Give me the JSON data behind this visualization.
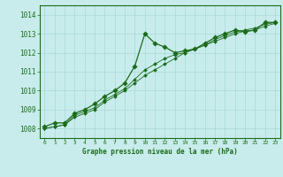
{
  "title": "Graphe pression niveau de la mer (hPa)",
  "background_color": "#c8ecec",
  "grid_color": "#a8d8d8",
  "line_color": "#1a6b1a",
  "text_color": "#1a6b1a",
  "xlim": [
    -0.5,
    23.5
  ],
  "ylim": [
    1007.5,
    1014.5
  ],
  "yticks": [
    1008,
    1009,
    1010,
    1011,
    1012,
    1013,
    1014
  ],
  "xticks": [
    0,
    1,
    2,
    3,
    4,
    5,
    6,
    7,
    8,
    9,
    10,
    11,
    12,
    13,
    14,
    15,
    16,
    17,
    18,
    19,
    20,
    21,
    22,
    23
  ],
  "xtick_labels": [
    "0",
    "1",
    "2",
    "3",
    "4",
    "5",
    "6",
    "7",
    "8",
    "9",
    "10",
    "11",
    "12",
    "13",
    "14",
    "15",
    "16",
    "17",
    "18",
    "19",
    "20",
    "21",
    "22",
    "23"
  ],
  "series": [
    [
      1008.1,
      1008.3,
      1008.3,
      1008.8,
      1009.0,
      1009.3,
      1009.7,
      1010.0,
      1010.4,
      1011.3,
      1013.0,
      1012.5,
      1012.3,
      1012.0,
      1012.1,
      1012.2,
      1012.5,
      1012.8,
      1013.0,
      1013.2,
      1013.1,
      1013.2,
      1013.6,
      1013.6
    ],
    [
      1008.0,
      1008.1,
      1008.2,
      1008.7,
      1008.9,
      1009.1,
      1009.5,
      1009.8,
      1010.1,
      1010.6,
      1011.1,
      1011.4,
      1011.7,
      1011.9,
      1012.0,
      1012.2,
      1012.4,
      1012.7,
      1012.9,
      1013.1,
      1013.2,
      1013.3,
      1013.5,
      1013.6
    ],
    [
      1008.0,
      1008.1,
      1008.2,
      1008.6,
      1008.8,
      1009.0,
      1009.4,
      1009.7,
      1010.0,
      1010.4,
      1010.8,
      1011.1,
      1011.4,
      1011.7,
      1012.0,
      1012.2,
      1012.4,
      1012.6,
      1012.8,
      1013.0,
      1013.15,
      1013.2,
      1013.4,
      1013.55
    ]
  ],
  "figwidth": 3.2,
  "figheight": 2.0,
  "dpi": 100
}
